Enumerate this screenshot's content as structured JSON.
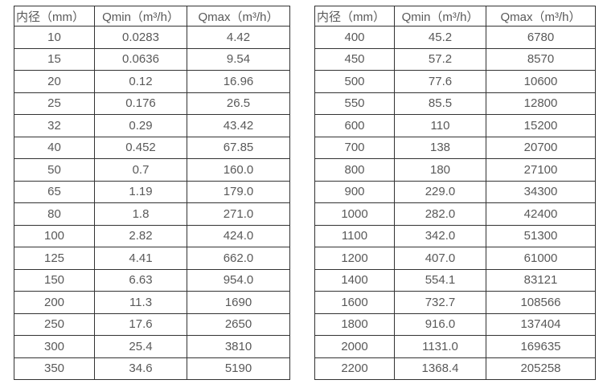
{
  "page": {
    "background_color": "#ffffff",
    "text_color": "#595959",
    "border_color": "#333333"
  },
  "tables": [
    {
      "name": "flow-rate-table-left",
      "headers": [
        "内径（mm）",
        "Qmin（m³/h）",
        "Qmax（m³/h）"
      ],
      "rows": [
        [
          "10",
          "0.0283",
          "4.42"
        ],
        [
          "15",
          "0.0636",
          "9.54"
        ],
        [
          "20",
          "0.12",
          "16.96"
        ],
        [
          "25",
          "0.176",
          "26.5"
        ],
        [
          "32",
          "0.29",
          "43.42"
        ],
        [
          "40",
          "0.452",
          "67.85"
        ],
        [
          "50",
          "0.7",
          "160.0"
        ],
        [
          "65",
          "1.19",
          "179.0"
        ],
        [
          "80",
          "1.8",
          "271.0"
        ],
        [
          "100",
          "2.82",
          "424.0"
        ],
        [
          "125",
          "4.41",
          "662.0"
        ],
        [
          "150",
          "6.63",
          "954.0"
        ],
        [
          "200",
          "11.3",
          "1690"
        ],
        [
          "250",
          "17.6",
          "2650"
        ],
        [
          "300",
          "25.4",
          "3810"
        ],
        [
          "350",
          "34.6",
          "5190"
        ]
      ]
    },
    {
      "name": "flow-rate-table-right",
      "headers": [
        "内径（mm）",
        "Qmin（m³/h）",
        "Qmax（m³/h）"
      ],
      "rows": [
        [
          "400",
          "45.2",
          "6780"
        ],
        [
          "450",
          "57.2",
          "8570"
        ],
        [
          "500",
          "77.6",
          "10600"
        ],
        [
          "550",
          "85.5",
          "12800"
        ],
        [
          "600",
          "110",
          "15200"
        ],
        [
          "700",
          "138",
          "20700"
        ],
        [
          "800",
          "180",
          "27100"
        ],
        [
          "900",
          "229.0",
          "34300"
        ],
        [
          "1000",
          "282.0",
          "42400"
        ],
        [
          "1100",
          "342.0",
          "51300"
        ],
        [
          "1200",
          "407.0",
          "61000"
        ],
        [
          "1400",
          "554.1",
          "83121"
        ],
        [
          "1600",
          "732.7",
          "108566"
        ],
        [
          "1800",
          "916.0",
          "137404"
        ],
        [
          "2000",
          "1131.0",
          "169635"
        ],
        [
          "2200",
          "1368.4",
          "205258"
        ]
      ]
    }
  ]
}
